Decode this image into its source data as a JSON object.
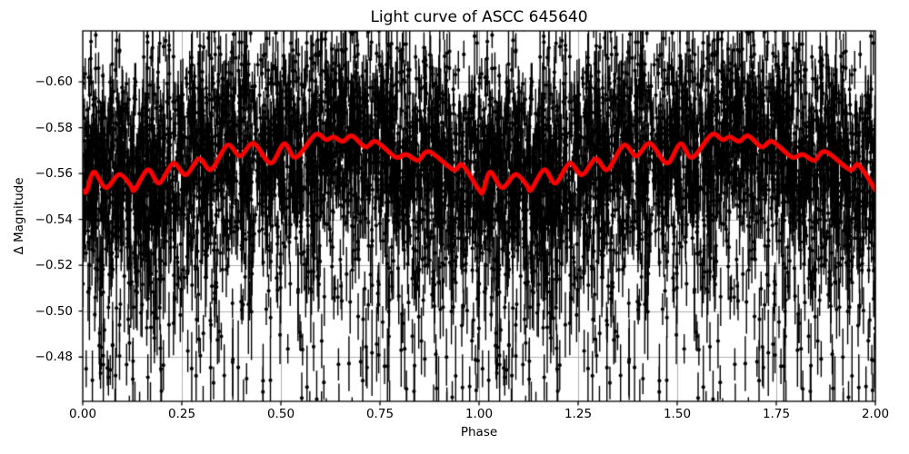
{
  "figure": {
    "background": "#ffffff",
    "text_color": "#000000"
  },
  "chart_data": {
    "type": "scatter",
    "title": "Light curve of ASCC 645640",
    "xlabel": "Phase",
    "ylabel": "Δ Magnitude",
    "xlim": [
      0.0,
      2.0
    ],
    "ylim": [
      -0.4607,
      -0.6222
    ],
    "y_axis_inverted": true,
    "grid": true,
    "grid_color": "#b0b0b0",
    "spine_color": "#000000",
    "x_ticks": [
      0.0,
      0.25,
      0.5,
      0.75,
      1.0,
      1.25,
      1.5,
      1.75,
      2.0
    ],
    "x_tick_labels": [
      "0.00",
      "0.25",
      "0.50",
      "0.75",
      "1.00",
      "1.25",
      "1.50",
      "1.75",
      "2.00"
    ],
    "y_ticks": [
      -0.6,
      -0.58,
      -0.56,
      -0.54,
      -0.52,
      -0.5,
      -0.48
    ],
    "y_tick_labels": [
      "−0.60",
      "−0.58",
      "−0.56",
      "−0.54",
      "−0.52",
      "−0.50",
      "−0.48"
    ],
    "series": [
      {
        "name": "photometric-observations-errorbars",
        "type": "errorbar-scatter",
        "color": "#000000",
        "marker": "circle",
        "marker_radius": 2.1,
        "errorbar_linewidth": 1.4,
        "points_per_cycle": 3200,
        "cycles": 2,
        "period": 1.0,
        "seed": 1337,
        "noise_model": {
          "core": {
            "weight": 0.72,
            "sigma": 0.02,
            "offset": -0.002
          },
          "tail": {
            "weight": 0.28,
            "sigma": 0.044,
            "offset": 0.026
          },
          "errorbar_halflength_base": 0.0035,
          "errorbar_halflength_scale": 0.0045,
          "tail_errorbar_scale": 1.7
        }
      },
      {
        "name": "smoothed-phased-model-curve",
        "type": "line",
        "color": "#ff0000",
        "linewidth": 5,
        "period": 1.0,
        "cycles": 2,
        "anchors": {
          "phase": [
            0.0,
            0.01,
            0.028,
            0.058,
            0.092,
            0.12,
            0.131,
            0.164,
            0.193,
            0.228,
            0.26,
            0.294,
            0.324,
            0.365,
            0.397,
            0.431,
            0.474,
            0.508,
            0.538,
            0.587,
            0.614,
            0.633,
            0.656,
            0.679,
            0.713,
            0.74,
            0.789,
            0.816,
            0.846,
            0.874,
            0.935,
            0.958,
            1.0
          ],
          "mag": [
            -0.5528,
            -0.5522,
            -0.5607,
            -0.5538,
            -0.5597,
            -0.555,
            -0.5528,
            -0.5617,
            -0.5558,
            -0.5645,
            -0.5594,
            -0.5665,
            -0.5617,
            -0.5724,
            -0.5676,
            -0.5732,
            -0.5645,
            -0.573,
            -0.567,
            -0.577,
            -0.5747,
            -0.576,
            -0.574,
            -0.5765,
            -0.5716,
            -0.574,
            -0.5672,
            -0.5684,
            -0.5657,
            -0.5696,
            -0.5617,
            -0.5637,
            -0.5528
          ]
        }
      }
    ]
  }
}
